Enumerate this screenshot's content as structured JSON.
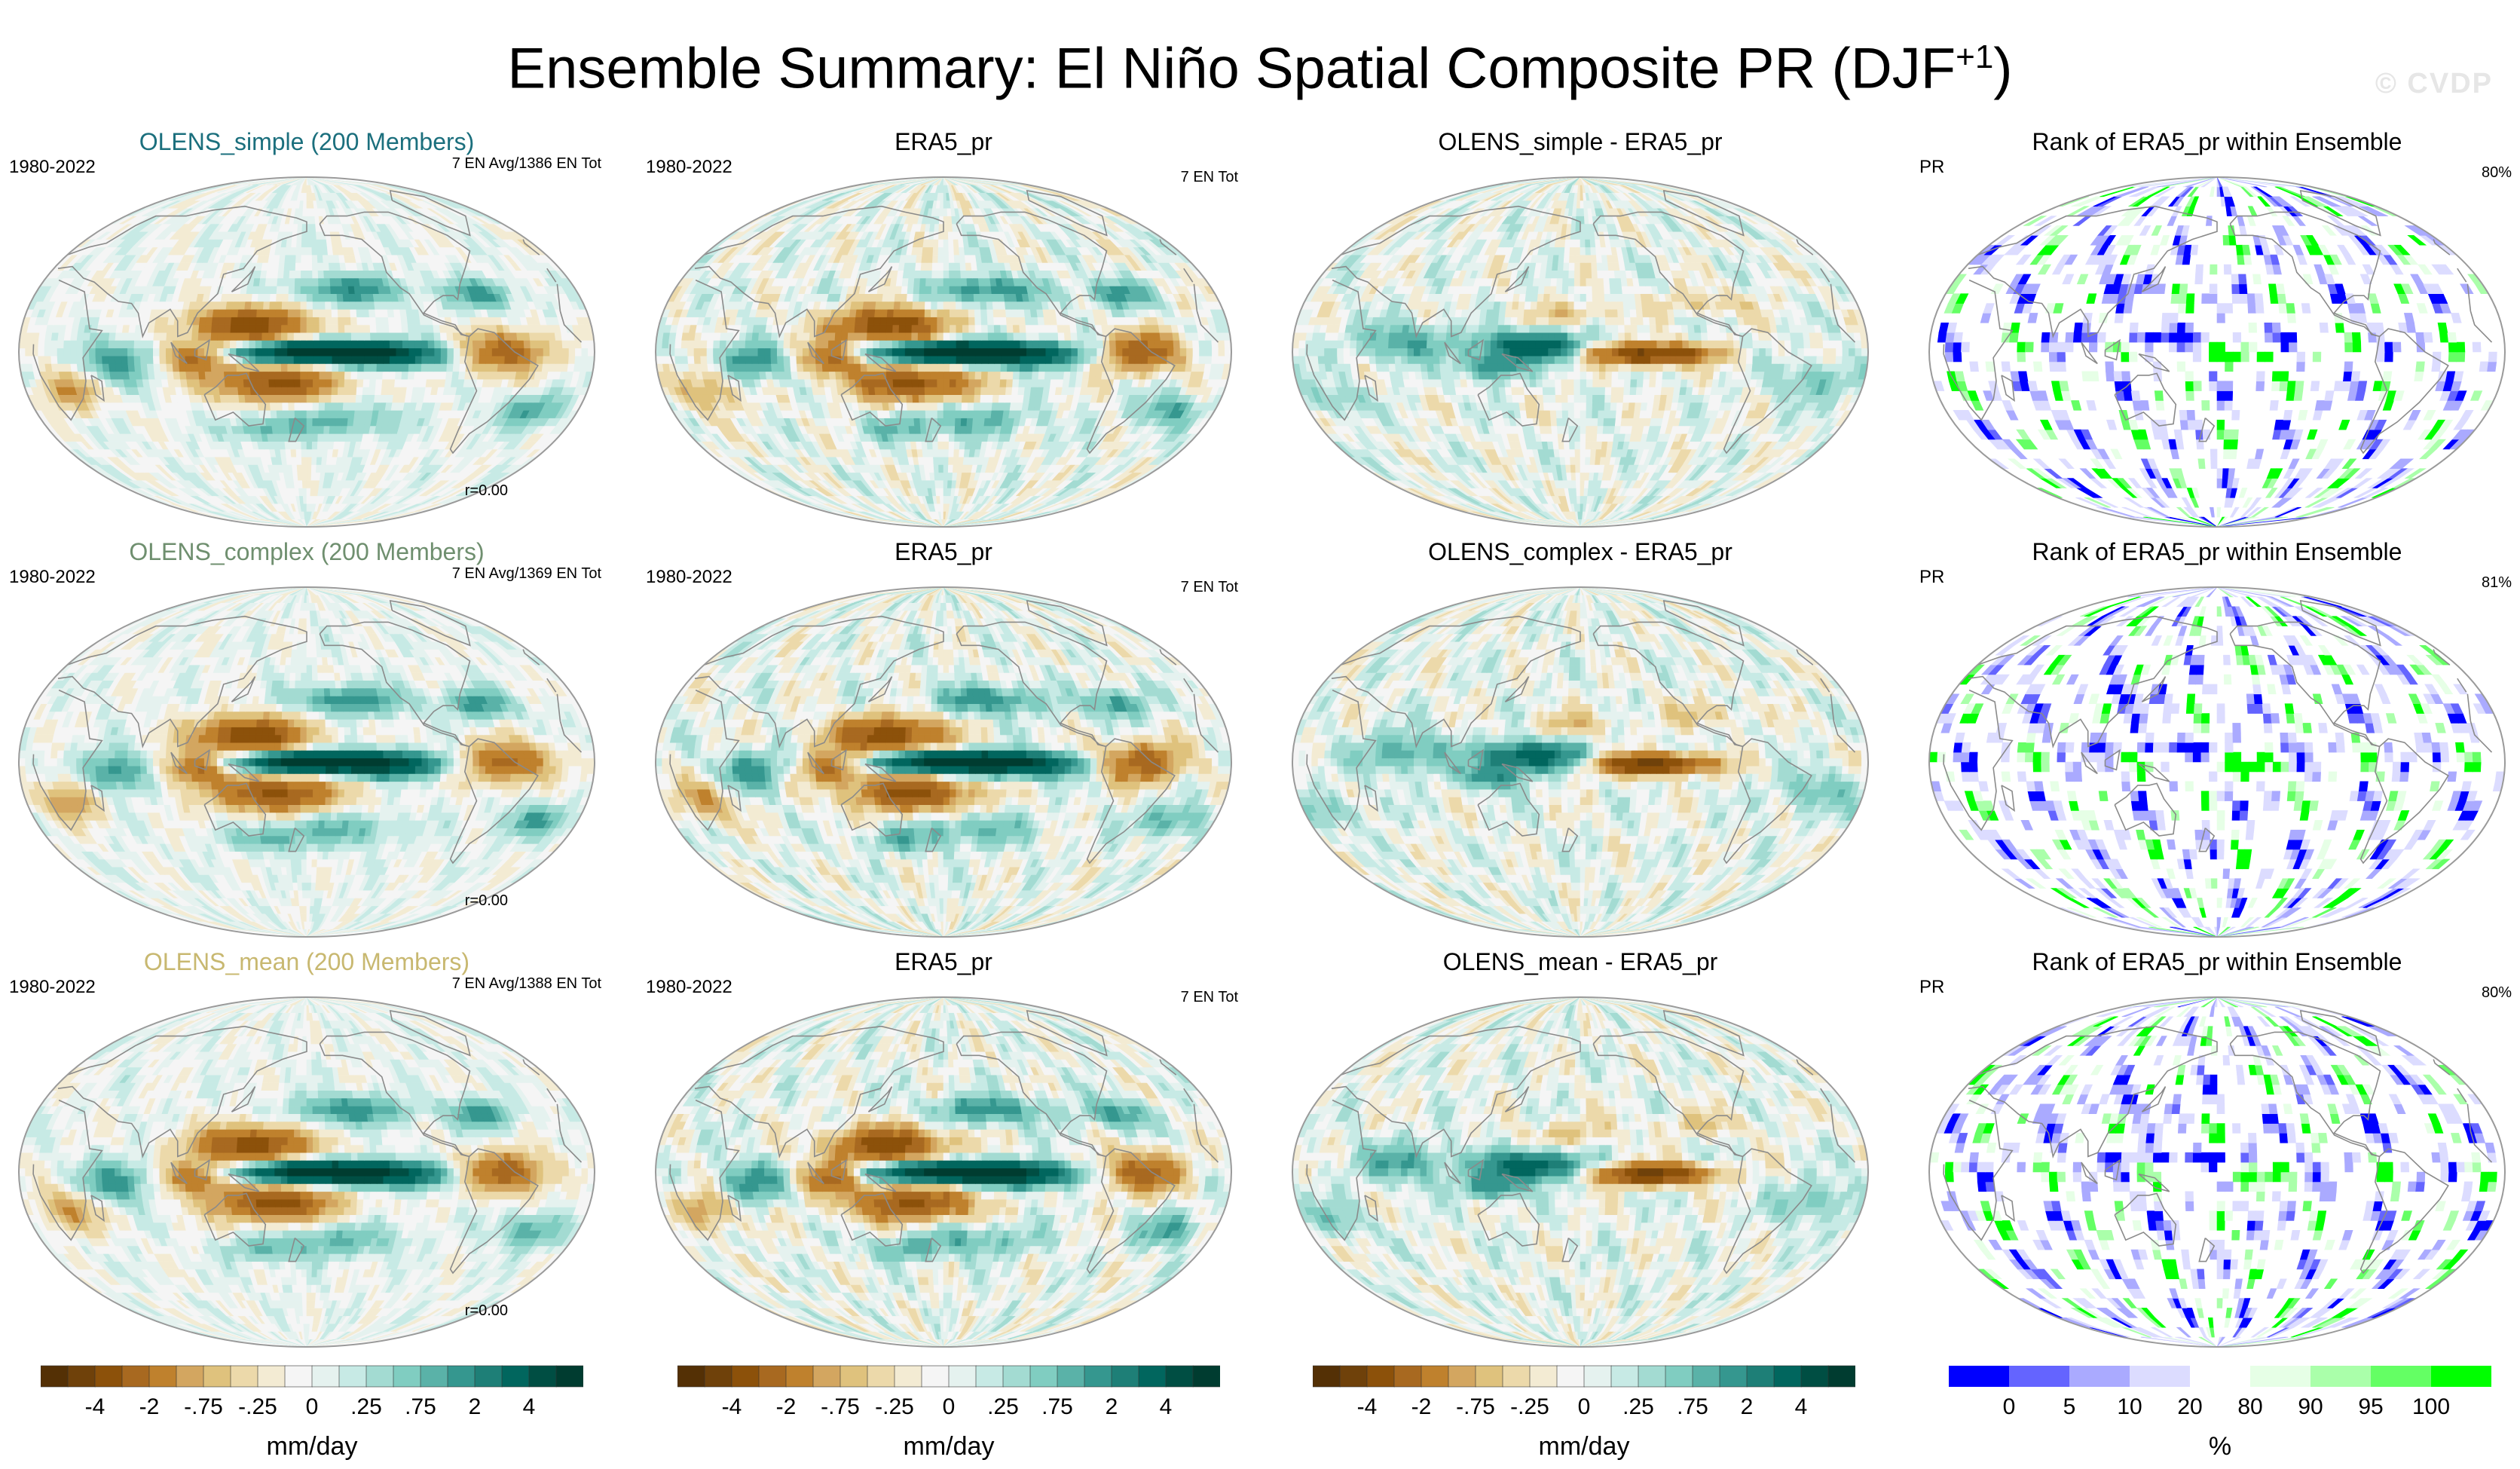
{
  "figure": {
    "title": "Ensemble Summary: El Niño Spatial Composite PR (DJF",
    "title_sup": "+1",
    "title_close": ")",
    "watermark": "© CVDP"
  },
  "colors": {
    "brbg": [
      "#543005",
      "#6f410a",
      "#8c510a",
      "#a86920",
      "#bf812d",
      "#d3a660",
      "#dfc27d",
      "#ecd9aa",
      "#f3ebd3",
      "#f5f5f5",
      "#e5f2ef",
      "#c7eae5",
      "#a3dbd2",
      "#80cdc1",
      "#5ab2a8",
      "#35978f",
      "#1e7f77",
      "#01665e",
      "#004e43",
      "#003c30"
    ],
    "rank": [
      "#0000ff",
      "#6464ff",
      "#aaaaff",
      "#dcdcff",
      "#ffffff",
      "#e6ffe6",
      "#aaffaa",
      "#64ff64",
      "#00ff00"
    ],
    "coast": "#8a8a8a",
    "frame": "#9a9a9a"
  },
  "rows": [
    {
      "ensemble": {
        "title": "OLENS_simple (200 Members)",
        "title_color": "#1b6f7d",
        "years": "1980-2022",
        "count": "7 EN Avg/1386 EN Tot",
        "corr": "r=0.00"
      },
      "obs": {
        "title": "ERA5_pr",
        "years": "1980-2022",
        "count": "7 EN Tot"
      },
      "diff": {
        "title": "OLENS_simple - ERA5_pr"
      },
      "rank": {
        "title": "Rank of ERA5_pr within Ensemble",
        "var": "PR",
        "pct": "80%"
      }
    },
    {
      "ensemble": {
        "title": "OLENS_complex (200 Members)",
        "title_color": "#6f8f6f",
        "years": "1980-2022",
        "count": "7 EN Avg/1369 EN Tot",
        "corr": "r=0.00"
      },
      "obs": {
        "title": "ERA5_pr",
        "years": "1980-2022",
        "count": "7 EN Tot"
      },
      "diff": {
        "title": "OLENS_complex - ERA5_pr"
      },
      "rank": {
        "title": "Rank of ERA5_pr within Ensemble",
        "var": "PR",
        "pct": "81%"
      }
    },
    {
      "ensemble": {
        "title": "OLENS_mean (200 Members)",
        "title_color": "#c8b870",
        "years": "1980-2022",
        "count": "7 EN Avg/1388 EN Tot",
        "corr": "r=0.00"
      },
      "obs": {
        "title": "ERA5_pr",
        "years": "1980-2022",
        "count": "7 EN Tot"
      },
      "diff": {
        "title": "OLENS_mean - ERA5_pr"
      },
      "rank": {
        "title": "Rank of ERA5_pr within Ensemble",
        "var": "PR",
        "pct": "80%"
      }
    }
  ],
  "colorbars": {
    "pr": {
      "ticks": [
        "-4",
        "-2",
        "-.75",
        "-.25",
        "0",
        ".25",
        ".75",
        "2",
        "4"
      ],
      "unit": "mm/day"
    },
    "rank": {
      "ticks": [
        "0",
        "5",
        "10",
        "20",
        "80",
        "90",
        "95",
        "100"
      ],
      "unit": "%"
    }
  },
  "chart_data": [
    {
      "type": "heatmap",
      "panel": "OLENS_simple (200 Members)",
      "units": "mm/day",
      "levels": [
        -4,
        -2,
        -0.75,
        -0.25,
        0,
        0.25,
        0.75,
        2,
        4
      ],
      "features": [
        {
          "region": "central/eastern equatorial Pacific",
          "value": 4
        },
        {
          "region": "Maritime Continent / western Pacific",
          "value": -2
        },
        {
          "region": "northeast South America",
          "value": -2
        },
        {
          "region": "southern Africa",
          "value": -0.75
        }
      ]
    },
    {
      "type": "heatmap",
      "panel": "ERA5_pr",
      "units": "mm/day",
      "levels": [
        -4,
        -2,
        -0.75,
        -0.25,
        0,
        0.25,
        0.75,
        2,
        4
      ],
      "features": [
        {
          "region": "central/eastern equatorial Pacific",
          "value": 4
        },
        {
          "region": "Maritime Continent / western Pacific",
          "value": -2
        },
        {
          "region": "northeast South America",
          "value": -2
        }
      ]
    },
    {
      "type": "heatmap",
      "panel": "OLENS_simple - ERA5_pr",
      "units": "mm/day",
      "levels": [
        -4,
        -2,
        -0.75,
        -0.25,
        0,
        0.25,
        0.75,
        2,
        4
      ],
      "features": [
        {
          "region": "central/eastern equatorial Pacific",
          "value": -2
        },
        {
          "region": "western equatorial Pacific",
          "value": 2
        }
      ]
    },
    {
      "type": "heatmap",
      "panel": "Rank of ERA5_pr within Ensemble",
      "units": "%",
      "levels": [
        0,
        5,
        10,
        20,
        80,
        90,
        95,
        100
      ],
      "features": [
        {
          "region": "central equatorial Pacific",
          "value": 97
        },
        {
          "region": "western equatorial Pacific band",
          "value": 3
        }
      ]
    },
    {
      "type": "heatmap",
      "panel": "OLENS_complex (200 Members)",
      "units": "mm/day",
      "levels": [
        -4,
        -2,
        -0.75,
        -0.25,
        0,
        0.25,
        0.75,
        2,
        4
      ],
      "features": [
        {
          "region": "central/eastern equatorial Pacific",
          "value": 4
        },
        {
          "region": "Maritime Continent / western Pacific",
          "value": -2
        }
      ]
    },
    {
      "type": "heatmap",
      "panel": "ERA5_pr",
      "units": "mm/day",
      "levels": [
        -4,
        -2,
        -0.75,
        -0.25,
        0,
        0.25,
        0.75,
        2,
        4
      ],
      "features": [
        {
          "region": "central/eastern equatorial Pacific",
          "value": 4
        },
        {
          "region": "Maritime Continent / western Pacific",
          "value": -2
        }
      ]
    },
    {
      "type": "heatmap",
      "panel": "OLENS_complex - ERA5_pr",
      "units": "mm/day",
      "levels": [
        -4,
        -2,
        -0.75,
        -0.25,
        0,
        0.25,
        0.75,
        2,
        4
      ],
      "features": [
        {
          "region": "central/eastern equatorial Pacific",
          "value": -2
        },
        {
          "region": "western equatorial Pacific",
          "value": 2
        }
      ]
    },
    {
      "type": "heatmap",
      "panel": "Rank of ERA5_pr within Ensemble",
      "units": "%",
      "levels": [
        0,
        5,
        10,
        20,
        80,
        90,
        95,
        100
      ],
      "features": [
        {
          "region": "central equatorial Pacific",
          "value": 97
        },
        {
          "region": "western equatorial Pacific band",
          "value": 3
        }
      ]
    },
    {
      "type": "heatmap",
      "panel": "OLENS_mean (200 Members)",
      "units": "mm/day",
      "levels": [
        -4,
        -2,
        -0.75,
        -0.25,
        0,
        0.25,
        0.75,
        2,
        4
      ],
      "features": [
        {
          "region": "central/eastern equatorial Pacific",
          "value": 4
        },
        {
          "region": "Maritime Continent / western Pacific",
          "value": -2
        }
      ]
    },
    {
      "type": "heatmap",
      "panel": "ERA5_pr",
      "units": "mm/day",
      "levels": [
        -4,
        -2,
        -0.75,
        -0.25,
        0,
        0.25,
        0.75,
        2,
        4
      ],
      "features": [
        {
          "region": "central/eastern equatorial Pacific",
          "value": 4
        },
        {
          "region": "Maritime Continent / western Pacific",
          "value": -2
        }
      ]
    },
    {
      "type": "heatmap",
      "panel": "OLENS_mean - ERA5_pr",
      "units": "mm/day",
      "levels": [
        -4,
        -2,
        -0.75,
        -0.25,
        0,
        0.25,
        0.75,
        2,
        4
      ],
      "features": [
        {
          "region": "central/eastern equatorial Pacific",
          "value": -2
        },
        {
          "region": "western equatorial Pacific",
          "value": 2
        }
      ]
    },
    {
      "type": "heatmap",
      "panel": "Rank of ERA5_pr within Ensemble",
      "units": "%",
      "levels": [
        0,
        5,
        10,
        20,
        80,
        90,
        95,
        100
      ],
      "features": [
        {
          "region": "central equatorial Pacific",
          "value": 97
        },
        {
          "region": "western equatorial Pacific band",
          "value": 3
        }
      ]
    }
  ]
}
